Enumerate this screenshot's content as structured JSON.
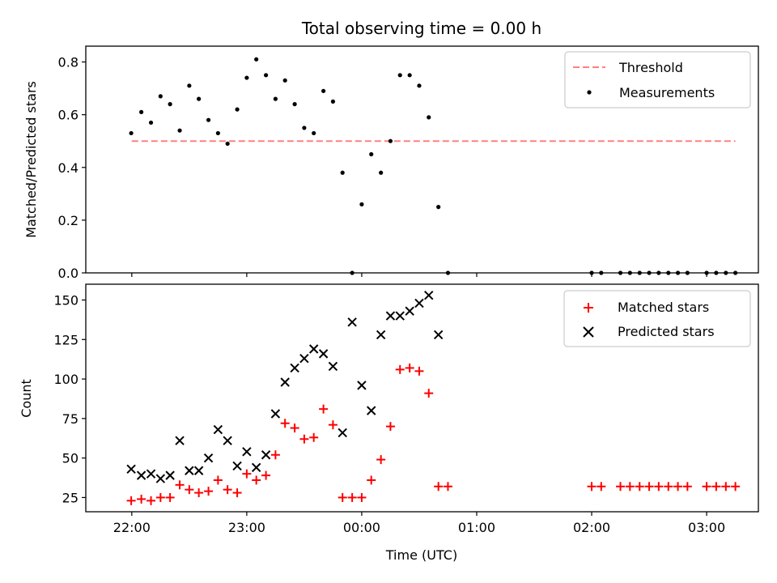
{
  "chart_data": {
    "title": "Total observing time = 0.00 h",
    "x_axis": {
      "label": "Time (UTC)",
      "range_hours": [
        21.6,
        27.45
      ],
      "tick_hours": [
        22,
        23,
        24,
        25,
        26,
        27
      ],
      "tick_labels": [
        "22:00",
        "23:00",
        "00:00",
        "01:00",
        "02:00",
        "03:00"
      ]
    },
    "subplots": [
      {
        "type": "scatter",
        "ylabel": "Matched/Predicted stars",
        "ylim": [
          0,
          0.86
        ],
        "yticks": [
          0.0,
          0.2,
          0.4,
          0.6,
          0.8
        ],
        "ytick_labels": [
          "0.0",
          "0.2",
          "0.4",
          "0.6",
          "0.8"
        ],
        "legend": {
          "position": "top-right",
          "entries": [
            "Threshold",
            "Measurements"
          ]
        },
        "series": [
          {
            "name": "Threshold",
            "style": "dashed-line",
            "color": "#ff8080",
            "x": [
              22,
              27.25
            ],
            "y": [
              0.5,
              0.5
            ]
          },
          {
            "name": "Measurements",
            "style": "dot",
            "color": "#000000",
            "x": [
              21.995,
              22.083,
              22.167,
              22.25,
              22.333,
              22.417,
              22.5,
              22.583,
              22.667,
              22.75,
              22.833,
              22.917,
              23.0,
              23.083,
              23.167,
              23.25,
              23.333,
              23.417,
              23.5,
              23.583,
              23.667,
              23.75,
              23.833,
              23.917,
              24.0,
              24.083,
              24.167,
              24.25,
              24.333,
              24.417,
              24.5,
              24.583,
              24.667,
              24.75,
              26.0,
              26.083,
              26.25,
              26.333,
              26.417,
              26.5,
              26.583,
              26.667,
              26.75,
              26.833,
              27.0,
              27.083,
              27.167,
              27.25
            ],
            "y": [
              0.53,
              0.61,
              0.57,
              0.67,
              0.64,
              0.54,
              0.71,
              0.66,
              0.58,
              0.53,
              0.49,
              0.62,
              0.74,
              0.81,
              0.75,
              0.66,
              0.73,
              0.64,
              0.55,
              0.53,
              0.69,
              0.65,
              0.38,
              0.0,
              0.26,
              0.45,
              0.38,
              0.5,
              0.75,
              0.75,
              0.71,
              0.59,
              0.25,
              0.0,
              0.0,
              0.0,
              0.0,
              0.0,
              0.0,
              0.0,
              0.0,
              0.0,
              0.0,
              0.0,
              0.0,
              0.0,
              0.0,
              0.0
            ]
          }
        ]
      },
      {
        "type": "scatter",
        "ylabel": "Count",
        "ylim": [
          16,
          160
        ],
        "yticks": [
          25,
          50,
          75,
          100,
          125,
          150
        ],
        "ytick_labels": [
          "25",
          "50",
          "75",
          "100",
          "125",
          "150"
        ],
        "legend": {
          "position": "top-right",
          "entries": [
            "Matched stars",
            "Predicted stars"
          ]
        },
        "series": [
          {
            "name": "Matched stars",
            "style": "plus",
            "color": "#ff0000",
            "x": [
              21.995,
              22.083,
              22.167,
              22.25,
              22.333,
              22.417,
              22.5,
              22.583,
              22.667,
              22.75,
              22.833,
              22.917,
              23.0,
              23.083,
              23.167,
              23.25,
              23.333,
              23.417,
              23.5,
              23.583,
              23.667,
              23.75,
              23.833,
              23.917,
              24.0,
              24.083,
              24.167,
              24.25,
              24.333,
              24.417,
              24.5,
              24.583,
              24.667,
              24.75,
              26.0,
              26.083,
              26.25,
              26.333,
              26.417,
              26.5,
              26.583,
              26.667,
              26.75,
              26.833,
              27.0,
              27.083,
              27.167,
              27.25
            ],
            "y": [
              23,
              24,
              23,
              25,
              25,
              33,
              30,
              28,
              29,
              36,
              30,
              28,
              40,
              36,
              39,
              52,
              72,
              69,
              62,
              63,
              81,
              71,
              25,
              25,
              25,
              36,
              49,
              70,
              106,
              107,
              105,
              91,
              32,
              32,
              32,
              32,
              32,
              32,
              32,
              32,
              32,
              32,
              32,
              32,
              32,
              32,
              32,
              32
            ]
          },
          {
            "name": "Predicted stars",
            "style": "cross",
            "color": "#000000",
            "x": [
              21.995,
              22.083,
              22.167,
              22.25,
              22.333,
              22.417,
              22.5,
              22.583,
              22.667,
              22.75,
              22.833,
              22.917,
              23.0,
              23.083,
              23.167,
              23.25,
              23.333,
              23.417,
              23.5,
              23.583,
              23.667,
              23.75,
              23.833,
              23.917,
              24.0,
              24.083,
              24.167,
              24.25,
              24.333,
              24.417,
              24.5,
              24.583,
              24.667
            ],
            "y": [
              43,
              39,
              40,
              37,
              39,
              61,
              42,
              42,
              50,
              68,
              61,
              45,
              54,
              44,
              52,
              78,
              98,
              107,
              113,
              119,
              116,
              108,
              66,
              136,
              96,
              80,
              128,
              140,
              140,
              143,
              148,
              153,
              128
            ]
          }
        ]
      }
    ]
  }
}
